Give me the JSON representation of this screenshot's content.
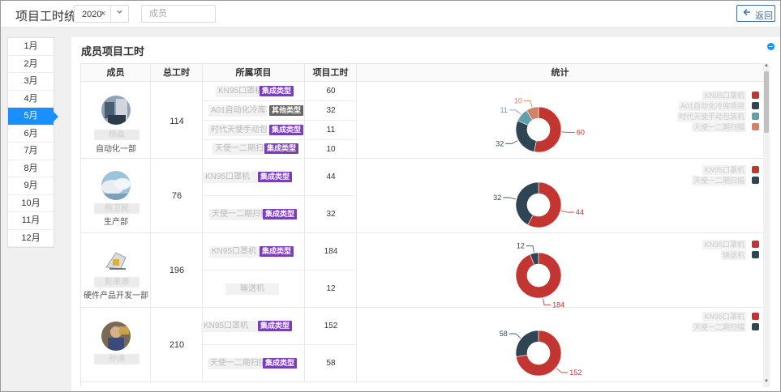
{
  "header": {
    "title": "项目工时统计",
    "year": "2020",
    "year_clear": "×",
    "member_placeholder": "成员",
    "back_label": "返回"
  },
  "months": [
    "1月",
    "2月",
    "3月",
    "4月",
    "5月",
    "6月",
    "7月",
    "8月",
    "9月",
    "10月",
    "11月",
    "12月"
  ],
  "selected_month": "5月",
  "panel": {
    "title": "成员项目工时",
    "columns": [
      "成员",
      "总工时",
      "所属项目",
      "项目工时",
      "统计"
    ]
  },
  "colors": {
    "accent": "#1890ff",
    "series": [
      "#c23531",
      "#2f4554",
      "#61a0a8",
      "#d48265"
    ],
    "tag_purple": "#7b3fb5",
    "tag_gray": "#666666"
  },
  "members": [
    {
      "name": "杨淼",
      "dept": "自动化一部",
      "total": "114",
      "projects": [
        {
          "name": "KN95口罩机",
          "tag": "集成类型",
          "hours": 60
        },
        {
          "name": "A01自动化冷库项目",
          "tag": "其他类型",
          "hours": 32
        },
        {
          "name": "时代天使手动包装机",
          "tag": "集成类型",
          "hours": 11
        },
        {
          "name": "天使一二期扫描",
          "tag": "集成类型",
          "hours": 10
        }
      ]
    },
    {
      "name": "杨卫民",
      "dept": "生产部",
      "total": "76",
      "projects": [
        {
          "name": "KN95口罩机",
          "tag": "集成类型",
          "hours": 44
        },
        {
          "name": "天使一二期扫描",
          "tag": "集成类型",
          "hours": 32
        }
      ]
    },
    {
      "name": "彭来源",
      "dept": "硬件产品开发一部",
      "total": "196",
      "projects": [
        {
          "name": "KN95口罩机",
          "tag": "集成类型",
          "hours": 184
        },
        {
          "name": "输送机",
          "tag": "",
          "hours": 12
        }
      ]
    },
    {
      "name": "孙涛",
      "dept": "",
      "total": "210",
      "projects": [
        {
          "name": "KN95口罩机",
          "tag": "集成类型",
          "hours": 152
        },
        {
          "name": "天使一二期扫描",
          "tag": "集成类型",
          "hours": 58
        }
      ]
    }
  ]
}
